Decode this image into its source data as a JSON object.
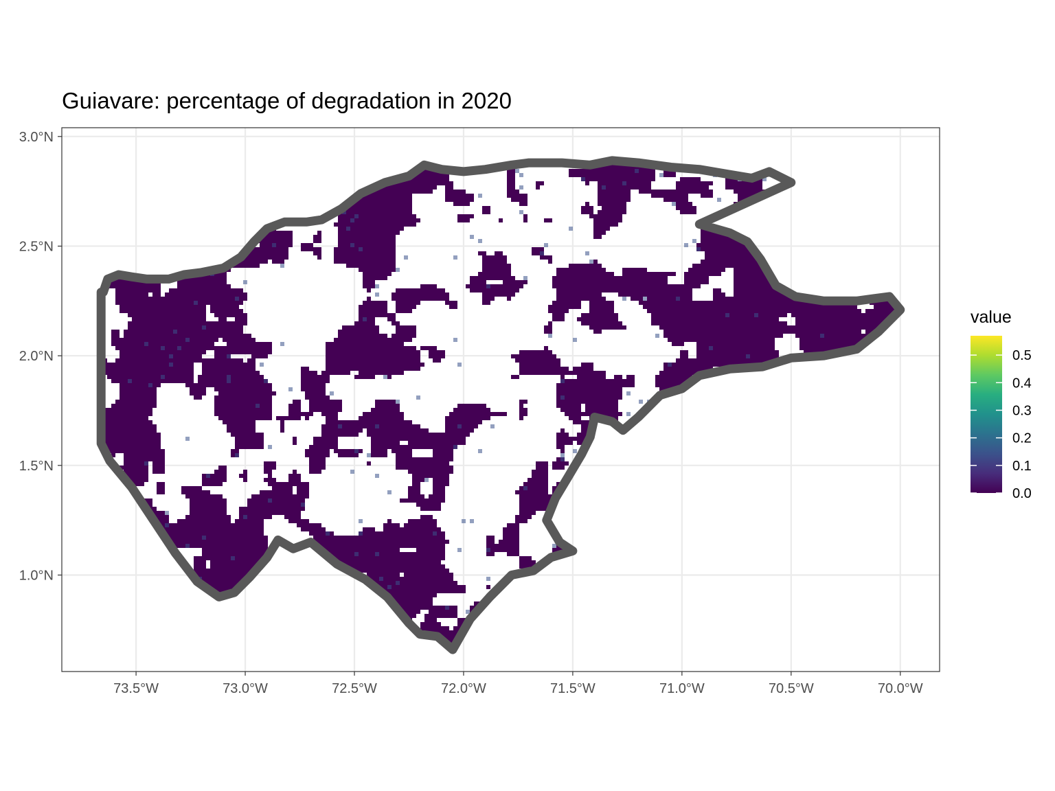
{
  "chart_data": {
    "type": "raster-map",
    "title": "Guiavare: percentage of degradation in 2020",
    "xlabel": "",
    "ylabel": "",
    "x_ticks": [
      {
        "value": -73.5,
        "label": "73.5°W"
      },
      {
        "value": -73.0,
        "label": "73.0°W"
      },
      {
        "value": -72.5,
        "label": "72.5°W"
      },
      {
        "value": -72.0,
        "label": "72.0°W"
      },
      {
        "value": -71.5,
        "label": "71.5°W"
      },
      {
        "value": -71.0,
        "label": "71.0°W"
      },
      {
        "value": -70.5,
        "label": "70.5°W"
      },
      {
        "value": -70.0,
        "label": "70.0°W"
      }
    ],
    "y_ticks": [
      {
        "value": 1.0,
        "label": "1.0°N"
      },
      {
        "value": 1.5,
        "label": "1.5°N"
      },
      {
        "value": 2.0,
        "label": "2.0°N"
      },
      {
        "value": 2.5,
        "label": "2.5°N"
      },
      {
        "value": 3.0,
        "label": "3.0°N"
      }
    ],
    "xlim": [
      -73.84,
      -69.82
    ],
    "ylim": [
      0.56,
      3.04
    ],
    "grid": true,
    "boundary_color": "#595959",
    "legend": {
      "title": "value",
      "position": "right",
      "colormap": "viridis",
      "range": [
        0.0,
        0.57
      ],
      "ticks": [
        {
          "value": 0.0,
          "label": "0.0"
        },
        {
          "value": 0.1,
          "label": "0.1"
        },
        {
          "value": 0.2,
          "label": "0.2"
        },
        {
          "value": 0.3,
          "label": "0.3"
        },
        {
          "value": 0.4,
          "label": "0.4"
        },
        {
          "value": 0.5,
          "label": "0.5"
        }
      ]
    },
    "boundary": [
      [
        -73.65,
        2.29
      ],
      [
        -73.63,
        2.35
      ],
      [
        -73.58,
        2.37
      ],
      [
        -73.52,
        2.36
      ],
      [
        -73.45,
        2.35
      ],
      [
        -73.35,
        2.35
      ],
      [
        -73.28,
        2.37
      ],
      [
        -73.2,
        2.38
      ],
      [
        -73.1,
        2.4
      ],
      [
        -73.02,
        2.45
      ],
      [
        -72.96,
        2.52
      ],
      [
        -72.9,
        2.58
      ],
      [
        -72.82,
        2.61
      ],
      [
        -72.72,
        2.61
      ],
      [
        -72.65,
        2.62
      ],
      [
        -72.56,
        2.67
      ],
      [
        -72.47,
        2.74
      ],
      [
        -72.36,
        2.79
      ],
      [
        -72.25,
        2.82
      ],
      [
        -72.18,
        2.87
      ],
      [
        -72.1,
        2.85
      ],
      [
        -72.0,
        2.84
      ],
      [
        -71.9,
        2.85
      ],
      [
        -71.78,
        2.87
      ],
      [
        -71.7,
        2.88
      ],
      [
        -71.55,
        2.88
      ],
      [
        -71.42,
        2.87
      ],
      [
        -71.32,
        2.89
      ],
      [
        -71.2,
        2.88
      ],
      [
        -71.05,
        2.86
      ],
      [
        -70.92,
        2.85
      ],
      [
        -70.8,
        2.83
      ],
      [
        -70.68,
        2.81
      ],
      [
        -70.6,
        2.84
      ],
      [
        -70.5,
        2.79
      ],
      [
        -70.92,
        2.6
      ],
      [
        -70.78,
        2.56
      ],
      [
        -70.7,
        2.52
      ],
      [
        -70.64,
        2.44
      ],
      [
        -70.57,
        2.32
      ],
      [
        -70.48,
        2.27
      ],
      [
        -70.35,
        2.25
      ],
      [
        -70.2,
        2.25
      ],
      [
        -70.05,
        2.27
      ],
      [
        -70.0,
        2.21
      ],
      [
        -70.1,
        2.11
      ],
      [
        -70.2,
        2.03
      ],
      [
        -70.35,
        2.0
      ],
      [
        -70.5,
        1.99
      ],
      [
        -70.63,
        1.95
      ],
      [
        -70.78,
        1.94
      ],
      [
        -70.92,
        1.91
      ],
      [
        -71.0,
        1.85
      ],
      [
        -71.1,
        1.82
      ],
      [
        -71.2,
        1.72
      ],
      [
        -71.27,
        1.66
      ],
      [
        -71.32,
        1.7
      ],
      [
        -71.4,
        1.72
      ],
      [
        -71.42,
        1.63
      ],
      [
        -71.46,
        1.55
      ],
      [
        -71.52,
        1.45
      ],
      [
        -71.58,
        1.35
      ],
      [
        -71.62,
        1.25
      ],
      [
        -71.56,
        1.15
      ],
      [
        -71.5,
        1.11
      ],
      [
        -71.6,
        1.08
      ],
      [
        -71.68,
        1.02
      ],
      [
        -71.78,
        1.0
      ],
      [
        -71.88,
        0.9
      ],
      [
        -71.97,
        0.8
      ],
      [
        -72.05,
        0.66
      ],
      [
        -72.12,
        0.72
      ],
      [
        -72.2,
        0.73
      ],
      [
        -72.25,
        0.78
      ],
      [
        -72.35,
        0.9
      ],
      [
        -72.45,
        0.98
      ],
      [
        -72.58,
        1.05
      ],
      [
        -72.7,
        1.15
      ],
      [
        -72.78,
        1.12
      ],
      [
        -72.85,
        1.16
      ],
      [
        -72.9,
        1.08
      ],
      [
        -72.98,
        0.99
      ],
      [
        -73.05,
        0.92
      ],
      [
        -73.12,
        0.9
      ],
      [
        -73.22,
        0.97
      ],
      [
        -73.32,
        1.1
      ],
      [
        -73.42,
        1.25
      ],
      [
        -73.52,
        1.4
      ],
      [
        -73.62,
        1.52
      ],
      [
        -73.66,
        1.6
      ],
      [
        -73.66,
        2.29
      ]
    ]
  }
}
